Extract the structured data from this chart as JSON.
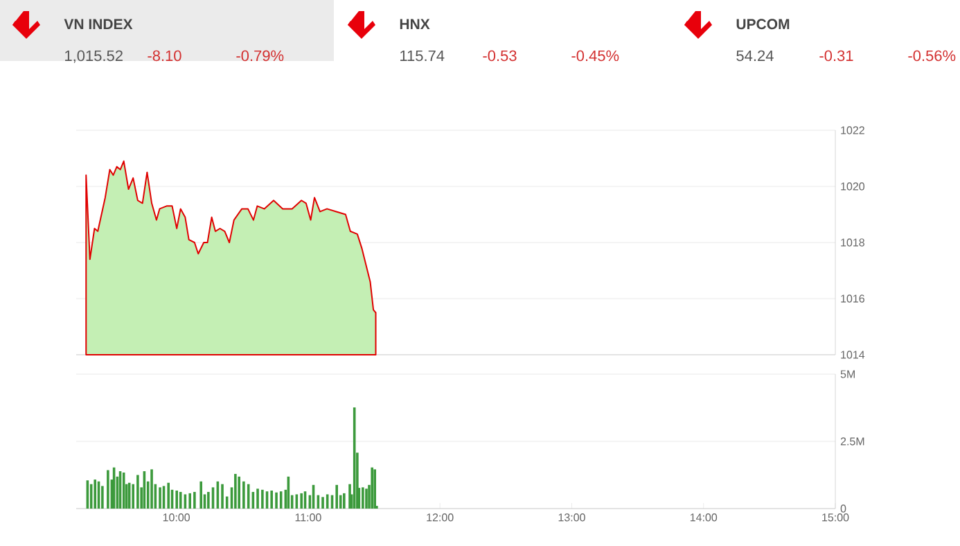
{
  "chart_data": [
    {
      "type": "other",
      "annotations": [
        "VN INDEX",
        "1,015.52",
        "-8.10",
        "-0.79%",
        "HNX",
        "115.74",
        "-0.53",
        "-0.45%",
        "UPCOM",
        "54.24",
        "-0.31",
        "-0.56%"
      ]
    },
    {
      "type": "area",
      "color": "#e00000",
      "grid": "y",
      "tick_labels": "y",
      "xlim": [
        9.24,
        15
      ],
      "ylim": [
        1014,
        1022
      ],
      "yticks": [
        1014,
        1016,
        1018,
        1020,
        1022
      ],
      "x": [
        9.315,
        9.344,
        9.379,
        9.404,
        9.46,
        9.495,
        9.521,
        9.548,
        9.575,
        9.601,
        9.637,
        9.672,
        9.707,
        9.743,
        9.778,
        9.813,
        9.849,
        9.873,
        9.926,
        9.968,
        10.003,
        10.032,
        10.067,
        10.095,
        10.138,
        10.166,
        10.208,
        10.236,
        10.268,
        10.296,
        10.331,
        10.367,
        10.402,
        10.437,
        10.497,
        10.543,
        10.585,
        10.614,
        10.667,
        10.738,
        10.807,
        10.878,
        10.949,
        10.984,
        11.019,
        11.048,
        11.09,
        11.143,
        11.214,
        11.284,
        11.32,
        11.373,
        11.407,
        11.471,
        11.495,
        11.513
      ],
      "values": [
        1020.4,
        1017.4,
        1018.5,
        1018.4,
        1019.6,
        1020.6,
        1020.4,
        1020.7,
        1020.6,
        1020.9,
        1019.9,
        1020.3,
        1019.5,
        1019.4,
        1020.5,
        1019.4,
        1018.8,
        1019.2,
        1019.3,
        1019.3,
        1018.5,
        1019.2,
        1018.9,
        1018.1,
        1018.0,
        1017.6,
        1018.0,
        1018.0,
        1018.9,
        1018.4,
        1018.5,
        1018.4,
        1018.0,
        1018.8,
        1019.2,
        1019.2,
        1018.8,
        1019.3,
        1019.2,
        1019.5,
        1019.2,
        1019.2,
        1019.5,
        1019.4,
        1018.8,
        1019.6,
        1019.1,
        1019.2,
        1019.1,
        1019.0,
        1018.4,
        1018.3,
        1017.8,
        1016.6,
        1015.6,
        1015.5
      ]
    },
    {
      "type": "bar",
      "color": "#3c9a3c",
      "grid": "y",
      "xlim": [
        9.24,
        15
      ],
      "ylim": [
        0,
        5
      ],
      "yticks": [
        0,
        {
          "value": 2.5,
          "label": "2.5M"
        },
        {
          "value": 5,
          "label": "5M"
        }
      ],
      "xticks": [
        {
          "value": 10,
          "label": "10:00"
        },
        {
          "value": 11,
          "label": "11:00"
        },
        {
          "value": 12,
          "label": "12:00"
        },
        {
          "value": 13,
          "label": "13:00"
        },
        {
          "value": 14,
          "label": "14:00"
        },
        {
          "value": 15,
          "label": "15:00"
        }
      ],
      "x": [
        9.326,
        9.354,
        9.383,
        9.411,
        9.439,
        9.481,
        9.51,
        9.527,
        9.552,
        9.574,
        9.601,
        9.622,
        9.643,
        9.672,
        9.707,
        9.735,
        9.757,
        9.785,
        9.813,
        9.841,
        9.876,
        9.905,
        9.94,
        9.968,
        10.003,
        10.032,
        10.067,
        10.103,
        10.138,
        10.187,
        10.215,
        10.243,
        10.278,
        10.314,
        10.349,
        10.384,
        10.42,
        10.448,
        10.476,
        10.511,
        10.547,
        10.582,
        10.617,
        10.653,
        10.688,
        10.723,
        10.759,
        10.794,
        10.829,
        10.85,
        10.878,
        10.913,
        10.949,
        10.977,
        11.013,
        11.04,
        11.076,
        11.111,
        11.146,
        11.182,
        11.217,
        11.246,
        11.273,
        11.316,
        11.33,
        11.351,
        11.373,
        11.386,
        11.415,
        11.442,
        11.463,
        11.485,
        11.506,
        11.52
      ],
      "values": [
        1.05,
        0.91,
        1.08,
        1.01,
        0.84,
        1.43,
        1.08,
        1.53,
        1.19,
        1.39,
        1.34,
        0.91,
        0.96,
        0.91,
        1.25,
        0.79,
        1.39,
        1.01,
        1.46,
        0.91,
        0.79,
        0.84,
        0.96,
        0.7,
        0.67,
        0.62,
        0.53,
        0.57,
        0.62,
        1.01,
        0.53,
        0.62,
        0.79,
        1.01,
        0.91,
        0.45,
        0.79,
        1.29,
        1.19,
        1.01,
        0.91,
        0.62,
        0.74,
        0.7,
        0.64,
        0.67,
        0.6,
        0.64,
        0.7,
        1.19,
        0.5,
        0.53,
        0.57,
        0.64,
        0.5,
        0.88,
        0.5,
        0.43,
        0.53,
        0.5,
        0.88,
        0.5,
        0.57,
        0.91,
        0.53,
        3.76,
        2.08,
        0.77,
        0.79,
        0.74,
        0.88,
        1.53,
        1.46,
        0.1
      ]
    }
  ]
}
